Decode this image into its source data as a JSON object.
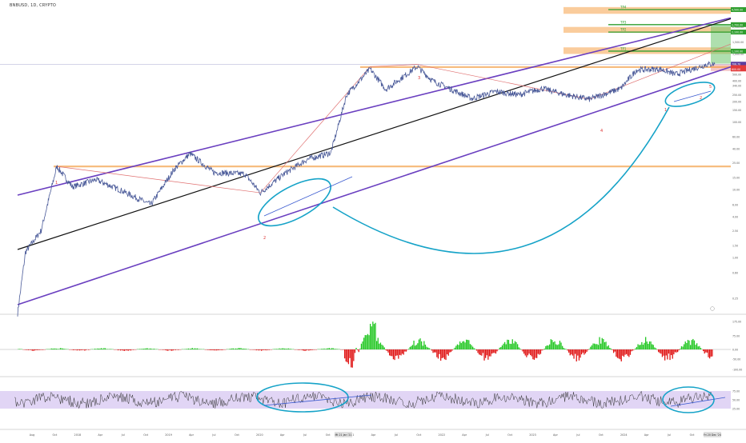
{
  "header": {
    "symbol": "BNBUSD, 1D, CRYPTO"
  },
  "chart_data": [
    {
      "type": "line",
      "scale": "log",
      "title": "BNBUSD, 1D, CRYPTO",
      "x_ticks": [
        "Aug",
        "Oct",
        "2018",
        "Apr",
        "Jul",
        "Oct",
        "2019",
        "Apr",
        "Jul",
        "Oct",
        "2020",
        "Apr",
        "Jul",
        "Oct",
        "2021",
        "Apr",
        "Jul",
        "Oct",
        "2022",
        "Apr",
        "Jul",
        "Oct",
        "2023",
        "Apr",
        "Jul",
        "Oct",
        "2024",
        "Apr",
        "Jul",
        "Oct"
      ],
      "x_tick_labels_raw": [
        "Aug",
        "Oct",
        "2018",
        "Apr",
        "Jul",
        "Oct",
        "2019",
        "Apr",
        "Jul",
        "Oct",
        "2020",
        "Apr",
        "Jul",
        "Oct",
        "2021",
        "Apr",
        "Jul",
        "Oct",
        "2022",
        "Apr",
        "Jul",
        "Oct",
        "2023",
        "Apr",
        "Jul",
        "Oct",
        "2024",
        "Apr",
        "Jul",
        "Oct",
        "Apr"
      ],
      "y_ticks": [
        "2,500.00",
        "1,500.00",
        "1,000.00",
        "620.00",
        "500.00",
        "400.00",
        "340.00",
        "250.00",
        "200.00",
        "150.00",
        "100.00",
        "60.00",
        "40.00",
        "25.00",
        "15.00",
        "10.00",
        "6.00",
        "4.00",
        "2.50",
        "1.50",
        "1.00",
        "0.60",
        "0.25"
      ],
      "price_series": [
        [
          "2017-08",
          0.15
        ],
        [
          "2017-09",
          1.2
        ],
        [
          "2017-11",
          2.5
        ],
        [
          "2018-01",
          22
        ],
        [
          "2018-03",
          11
        ],
        [
          "2018-06",
          14
        ],
        [
          "2018-09",
          10
        ],
        [
          "2019-01",
          6
        ],
        [
          "2019-04",
          20
        ],
        [
          "2019-06",
          34
        ],
        [
          "2019-09",
          18
        ],
        [
          "2020-01",
          17
        ],
        [
          "2020-03",
          9
        ],
        [
          "2020-06",
          17
        ],
        [
          "2020-09",
          28
        ],
        [
          "2020-12",
          35
        ],
        [
          "2021-02",
          250
        ],
        [
          "2021-05",
          600
        ],
        [
          "2021-07",
          300
        ],
        [
          "2021-11",
          650
        ],
        [
          "2022-01",
          400
        ],
        [
          "2022-06",
          220
        ],
        [
          "2022-09",
          280
        ],
        [
          "2022-12",
          250
        ],
        [
          "2023-03",
          310
        ],
        [
          "2023-06",
          250
        ],
        [
          "2023-09",
          215
        ],
        [
          "2024-01",
          310
        ],
        [
          "2024-03",
          580
        ],
        [
          "2024-06",
          600
        ],
        [
          "2024-08",
          500
        ],
        [
          "2024-12",
          700
        ],
        [
          "2025-01",
          710
        ]
      ],
      "levels": [
        {
          "label": "TP4",
          "value": "4,500.00",
          "color": "#2e9e2e"
        },
        {
          "label": "TP3",
          "value": "2,700.00",
          "color": "#2e9e2e"
        },
        {
          "label": "TP2",
          "value": "2,100.00",
          "color": "#2e9e2e"
        },
        {
          "label": "TP1",
          "value": "1,100.00",
          "color": "#2e9e2e"
        }
      ],
      "wave_labels": [
        "1",
        "2",
        "3",
        "4",
        "5",
        "1",
        "2"
      ],
      "price_labels": [
        {
          "text": "4,500.00",
          "bg": "#2e9e2e"
        },
        {
          "text": "2,700.00",
          "bg": "#2e9e2e"
        },
        {
          "text": "2,100.00",
          "bg": "#2e9e2e"
        },
        {
          "text": "1,100.00",
          "bg": "#2e9e2e"
        },
        {
          "text": "706.70",
          "bg": "#5b3fa0"
        },
        {
          "text": "630.00",
          "bg": "#e23b3b"
        },
        {
          "text": "600.00",
          "bg": "#e23b3b"
        }
      ],
      "x_badge_labels": [
        "Mt 21 Jan '21",
        "Fri 20 Dec '24"
      ],
      "colors": {
        "price": "#4a5a99",
        "channel": "#6a3fc0",
        "mid": "#111111",
        "fib": "#e07070",
        "zone": "#f5a24b",
        "ellipse": "#16a3c8",
        "tp": "#2e9e2e"
      }
    },
    {
      "type": "bar",
      "name": "momentum oscillator",
      "y_ticks": [
        "175.00",
        "75.00",
        "0.00",
        "-50.00",
        "-100.00"
      ],
      "colors": {
        "pos": "#23c723",
        "neg": "#e01515"
      }
    },
    {
      "type": "line",
      "name": "RSI",
      "y_ticks": [
        "75.00",
        "50.00",
        "25.00"
      ],
      "band": [
        30,
        70
      ],
      "colors": {
        "line": "#333333",
        "band": "#d9cbf2",
        "trend": "#3a5ad0"
      }
    }
  ]
}
